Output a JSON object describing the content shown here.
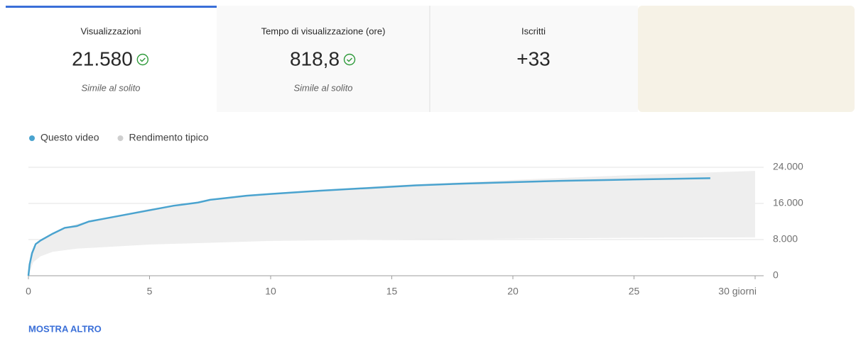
{
  "tabs": [
    {
      "label": "Visualizzazioni",
      "value": "21.580",
      "note": "Simile al solito"
    },
    {
      "label": "Tempo di visualizzazione (ore)",
      "value": "818,8",
      "note": "Simile al solito"
    },
    {
      "label": "Iscritti",
      "value": "+33"
    }
  ],
  "chart_data": {
    "type": "line",
    "series": [
      {
        "name": "Questo video",
        "color": "#4aa3cf",
        "x": [
          0,
          0.05,
          0.15,
          0.3,
          0.5,
          1,
          1.5,
          2,
          2.5,
          3,
          4,
          5,
          6,
          7,
          7.5,
          8,
          9,
          10,
          12,
          14,
          16,
          18,
          20,
          22,
          24,
          26,
          28.15
        ],
        "values": [
          0,
          2500,
          5000,
          7000,
          7800,
          9300,
          10600,
          11000,
          12000,
          12500,
          13500,
          14500,
          15500,
          16200,
          16800,
          17100,
          17700,
          18100,
          18800,
          19400,
          20000,
          20400,
          20700,
          21000,
          21200,
          21400,
          21580
        ]
      },
      {
        "name": "Rendimento tipico",
        "color": "#cfcfcf",
        "x": [
          0,
          0.2,
          0.5,
          1,
          2,
          5,
          10,
          15,
          20,
          25,
          30
        ],
        "lower": [
          0,
          3000,
          4300,
          5300,
          6000,
          6900,
          7700,
          8000,
          8200,
          8400,
          8500
        ],
        "upper": [
          0,
          5500,
          8000,
          9500,
          11500,
          14800,
          18300,
          20000,
          21200,
          22300,
          23200
        ]
      }
    ],
    "xlim": [
      0,
      30
    ],
    "xticks": [
      0,
      5,
      10,
      15,
      20,
      25,
      {
        "value": 30,
        "label": "30 giorni"
      }
    ],
    "ylim": [
      0,
      24000
    ],
    "yticks": [
      0,
      {
        "value": 8000,
        "label": "8.000"
      },
      {
        "value": 16000,
        "label": "16.000"
      },
      {
        "value": 24000,
        "label": "24.000"
      }
    ],
    "grid": true
  },
  "button": "MOSTRA ALTRO"
}
